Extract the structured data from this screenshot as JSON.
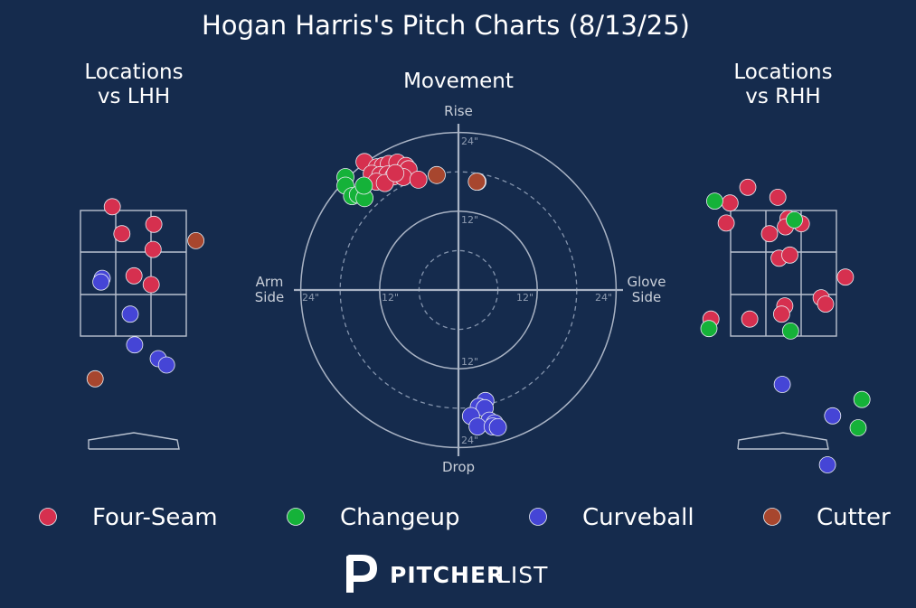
{
  "title": "Hogan Harris's Pitch Charts (8/13/25)",
  "brand": {
    "bold": "PITCHER",
    "light": "LIST"
  },
  "colors": {
    "Four-Seam": "#d6304f",
    "Changeup": "#15b239",
    "Curveball": "#4545d6",
    "Cutter": "#a7462e"
  },
  "chart_data": [
    {
      "type": "scatter",
      "title": "Locations vs LHH",
      "title_lines": [
        "Locations",
        "vs LHH"
      ],
      "xlim": [
        -1.6,
        1.6
      ],
      "ylim": [
        -0.5,
        4.6
      ],
      "strike_zone": {
        "x": [
          -0.83,
          0.83
        ],
        "z": [
          1.5,
          3.5
        ]
      },
      "points": [
        {
          "type": "Four-Seam",
          "x": -0.33,
          "y": 3.56
        },
        {
          "type": "Four-Seam",
          "x": -0.18,
          "y": 3.13
        },
        {
          "type": "Four-Seam",
          "x": 0.32,
          "y": 3.28
        },
        {
          "type": "Four-Seam",
          "x": 0.31,
          "y": 2.88
        },
        {
          "type": "Four-Seam",
          "x": 0.01,
          "y": 2.46
        },
        {
          "type": "Four-Seam",
          "x": 0.28,
          "y": 2.32
        },
        {
          "type": "Cutter",
          "x": 0.98,
          "y": 3.02
        },
        {
          "type": "Cutter",
          "x": -0.6,
          "y": 0.82
        },
        {
          "type": "Curveball",
          "x": -0.49,
          "y": 2.42
        },
        {
          "type": "Curveball",
          "x": -0.51,
          "y": 2.36
        },
        {
          "type": "Curveball",
          "x": -0.05,
          "y": 1.85
        },
        {
          "type": "Curveball",
          "x": 0.02,
          "y": 1.36
        },
        {
          "type": "Curveball",
          "x": 0.39,
          "y": 1.14
        },
        {
          "type": "Curveball",
          "x": 0.52,
          "y": 1.04
        }
      ]
    },
    {
      "type": "scatter",
      "title": "Movement",
      "axis_labels": {
        "top": "Rise",
        "bottom": "Drop",
        "left_lines": [
          "Arm",
          "Side"
        ],
        "right_lines": [
          "Glove",
          "Side"
        ]
      },
      "xlim": [
        -26,
        26
      ],
      "ylim": [
        -26,
        26
      ],
      "rings": [
        6,
        12,
        18,
        24
      ],
      "ring_labels": {
        "top_12": "12\"",
        "top_24": "24\"",
        "left_12": "12\"",
        "left_24": "24\"",
        "right_12": "12\"",
        "right_24": "24\"",
        "bottom_12": "12\"",
        "bottom_24": "24\""
      },
      "points": [
        {
          "type": "Four-Seam",
          "x": -14.3,
          "y": 19.5
        },
        {
          "type": "Four-Seam",
          "x": -12.4,
          "y": 18.7
        },
        {
          "type": "Four-Seam",
          "x": -11.5,
          "y": 18.9
        },
        {
          "type": "Four-Seam",
          "x": -10.6,
          "y": 19.2
        },
        {
          "type": "Four-Seam",
          "x": -9.3,
          "y": 19.4
        },
        {
          "type": "Four-Seam",
          "x": -8.0,
          "y": 18.9
        },
        {
          "type": "Four-Seam",
          "x": -7.6,
          "y": 18.4
        },
        {
          "type": "Four-Seam",
          "x": -13.2,
          "y": 17.7
        },
        {
          "type": "Four-Seam",
          "x": -11.9,
          "y": 17.5
        },
        {
          "type": "Four-Seam",
          "x": -10.8,
          "y": 17.6
        },
        {
          "type": "Four-Seam",
          "x": -9.9,
          "y": 17.3
        },
        {
          "type": "Four-Seam",
          "x": -8.4,
          "y": 17.2
        },
        {
          "type": "Four-Seam",
          "x": -6.1,
          "y": 16.8
        },
        {
          "type": "Four-Seam",
          "x": -12.5,
          "y": 16.5
        },
        {
          "type": "Four-Seam",
          "x": -11.2,
          "y": 16.3
        },
        {
          "type": "Four-Seam",
          "x": -9.6,
          "y": 17.8
        },
        {
          "type": "Four-Seam",
          "x": 2.9,
          "y": 16.5
        },
        {
          "type": "Cutter",
          "x": -3.3,
          "y": 17.5
        },
        {
          "type": "Cutter",
          "x": 2.8,
          "y": 16.5
        },
        {
          "type": "Changeup",
          "x": -17.2,
          "y": 17.2
        },
        {
          "type": "Changeup",
          "x": -17.2,
          "y": 15.9
        },
        {
          "type": "Changeup",
          "x": -16.2,
          "y": 14.3
        },
        {
          "type": "Changeup",
          "x": -15.3,
          "y": 14.5
        },
        {
          "type": "Changeup",
          "x": -14.3,
          "y": 14.0
        },
        {
          "type": "Changeup",
          "x": -14.4,
          "y": 15.9
        },
        {
          "type": "Curveball",
          "x": 4.1,
          "y": -16.9
        },
        {
          "type": "Curveball",
          "x": 3.1,
          "y": -17.8
        },
        {
          "type": "Curveball",
          "x": 4.0,
          "y": -18.0
        },
        {
          "type": "Curveball",
          "x": 1.9,
          "y": -19.2
        },
        {
          "type": "Curveball",
          "x": 4.7,
          "y": -19.9
        },
        {
          "type": "Curveball",
          "x": 5.5,
          "y": -20.3
        },
        {
          "type": "Curveball",
          "x": 2.9,
          "y": -20.8
        },
        {
          "type": "Curveball",
          "x": 5.2,
          "y": -20.8
        },
        {
          "type": "Curveball",
          "x": 6.0,
          "y": -20.9
        }
      ]
    },
    {
      "type": "scatter",
      "title": "Locations vs RHH",
      "title_lines": [
        "Locations",
        "vs RHH"
      ],
      "xlim": [
        -1.6,
        1.6
      ],
      "ylim": [
        -0.5,
        4.6
      ],
      "strike_zone": {
        "x": [
          -0.83,
          0.83
        ],
        "z": [
          1.5,
          3.5
        ]
      },
      "points": [
        {
          "type": "Four-Seam",
          "x": -0.56,
          "y": 3.87
        },
        {
          "type": "Four-Seam",
          "x": -0.84,
          "y": 3.62
        },
        {
          "type": "Four-Seam",
          "x": -0.09,
          "y": 3.71
        },
        {
          "type": "Four-Seam",
          "x": -0.9,
          "y": 3.3
        },
        {
          "type": "Four-Seam",
          "x": 0.07,
          "y": 3.37
        },
        {
          "type": "Four-Seam",
          "x": 0.28,
          "y": 3.29
        },
        {
          "type": "Four-Seam",
          "x": 0.03,
          "y": 3.24
        },
        {
          "type": "Four-Seam",
          "x": -0.22,
          "y": 3.13
        },
        {
          "type": "Four-Seam",
          "x": -0.07,
          "y": 2.74
        },
        {
          "type": "Four-Seam",
          "x": 0.1,
          "y": 2.79
        },
        {
          "type": "Four-Seam",
          "x": 0.97,
          "y": 2.44
        },
        {
          "type": "Four-Seam",
          "x": 0.59,
          "y": 2.11
        },
        {
          "type": "Four-Seam",
          "x": 0.66,
          "y": 2.01
        },
        {
          "type": "Four-Seam",
          "x": 0.02,
          "y": 1.98
        },
        {
          "type": "Four-Seam",
          "x": -0.03,
          "y": 1.85
        },
        {
          "type": "Four-Seam",
          "x": -0.53,
          "y": 1.77
        },
        {
          "type": "Four-Seam",
          "x": -1.14,
          "y": 1.77
        },
        {
          "type": "Changeup",
          "x": -1.08,
          "y": 3.65
        },
        {
          "type": "Changeup",
          "x": 0.17,
          "y": 3.35
        },
        {
          "type": "Changeup",
          "x": 0.11,
          "y": 1.58
        },
        {
          "type": "Changeup",
          "x": -1.17,
          "y": 1.62
        },
        {
          "type": "Changeup",
          "x": 1.23,
          "y": 0.49
        },
        {
          "type": "Changeup",
          "x": 1.17,
          "y": 0.04
        },
        {
          "type": "Curveball",
          "x": -0.02,
          "y": 0.73
        },
        {
          "type": "Curveball",
          "x": 0.77,
          "y": 0.23
        },
        {
          "type": "Curveball",
          "x": 0.69,
          "y": -0.55
        }
      ]
    }
  ],
  "legend": [
    "Four-Seam",
    "Changeup",
    "Curveball",
    "Cutter"
  ]
}
